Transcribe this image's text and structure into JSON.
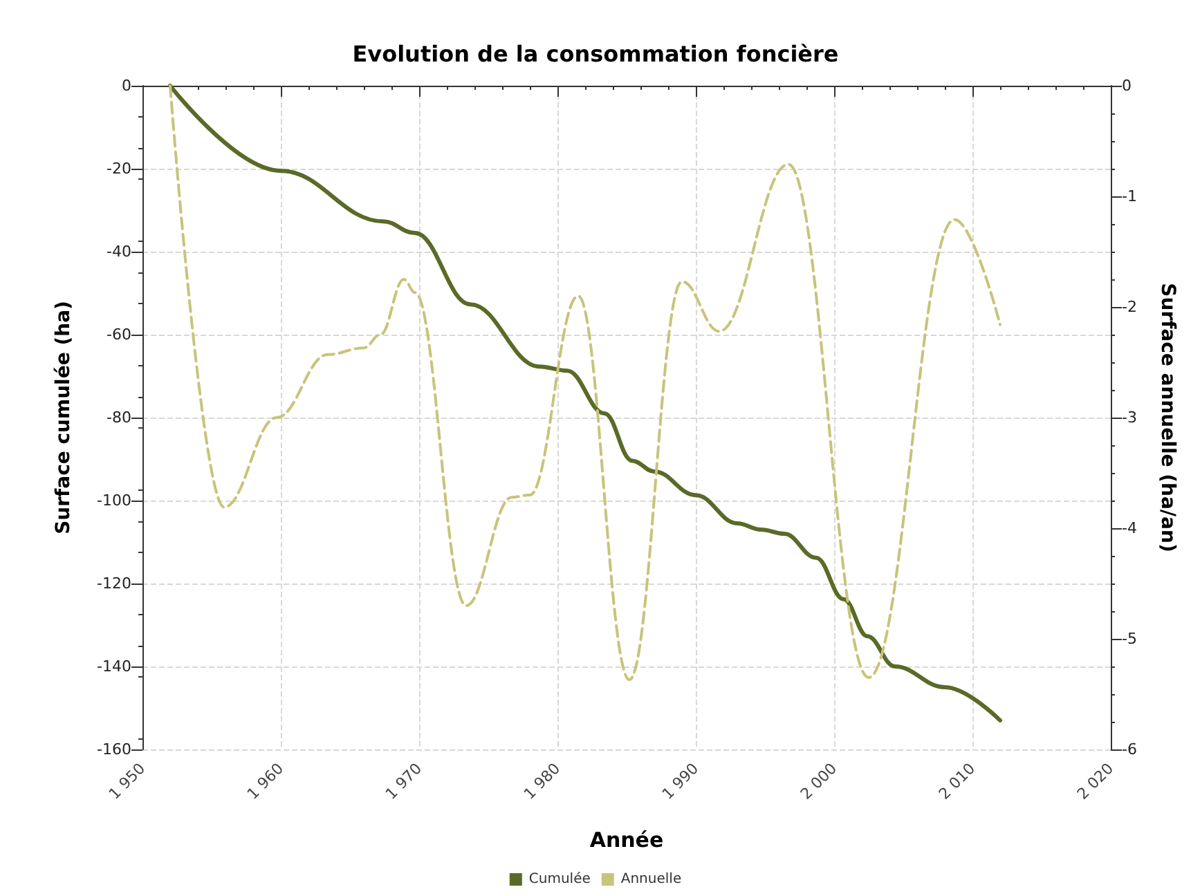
{
  "chart_data": {
    "type": "line",
    "title": "Evolution de la consommation foncière",
    "xlabel": "Année",
    "ylabel": "Surface cumulée (ha)",
    "y2label": "Surface annuelle (ha/an)",
    "xlim": [
      1950,
      2020
    ],
    "xticks": [
      {
        "value": 1950,
        "label": "1 950"
      },
      {
        "value": 1960,
        "label": "1 960"
      },
      {
        "value": 1970,
        "label": "1 970"
      },
      {
        "value": 1980,
        "label": "1 980"
      },
      {
        "value": 1990,
        "label": "1 990"
      },
      {
        "value": 2000,
        "label": "2 000"
      },
      {
        "value": 2010,
        "label": "2 010"
      },
      {
        "value": 2020,
        "label": "2 020"
      }
    ],
    "ylim": [
      -160,
      0
    ],
    "yticks": [
      -160,
      -140,
      -120,
      -100,
      -80,
      -60,
      -40,
      -20,
      0
    ],
    "y2lim": [
      -6,
      0
    ],
    "y2ticks": [
      -6,
      -5,
      -4,
      -3,
      -2,
      -1,
      0
    ],
    "grid": true,
    "legend": "bottom",
    "marker": "none",
    "series": [
      {
        "name": "Cumulée",
        "color": "#5a6a28",
        "line_style": "solid",
        "x": [
          1952,
          1960,
          1967.4,
          1969.7,
          1973.7,
          1978.7,
          1980.7,
          1983.4,
          1985.4,
          1987,
          1990,
          1993,
          1994.7,
          1996.4,
          1998.7,
          2000.7,
          2002.4,
          2004.4,
          2008,
          2012
        ],
        "values": [
          0,
          -20.5,
          -32.7,
          -35.5,
          -52.7,
          -67.7,
          -68.7,
          -79,
          -90.4,
          -93,
          -98.7,
          -105.5,
          -107,
          -108,
          -113.8,
          -123.8,
          -132.7,
          -140,
          -145,
          -153
        ]
      },
      {
        "name": "Annuelle",
        "color": "#c8c47a",
        "line_style": "dashed",
        "axis": "y2",
        "x": [
          1952,
          1955.9,
          1959.7,
          1963.4,
          1966,
          1967.2,
          1968.9,
          1969.7,
          1973.4,
          1976.7,
          1978,
          1981.5,
          1985.2,
          1989,
          1991.7,
          1996.7,
          2002.5,
          2008.7,
          2012
        ],
        "values": [
          0,
          -3.81,
          -3.0,
          -2.43,
          -2.37,
          -2.25,
          -1.75,
          -1.87,
          -4.7,
          -3.72,
          -3.7,
          -1.9,
          -5.37,
          -1.77,
          -2.22,
          -0.71,
          -5.35,
          -1.21,
          -2.16
        ]
      }
    ]
  }
}
